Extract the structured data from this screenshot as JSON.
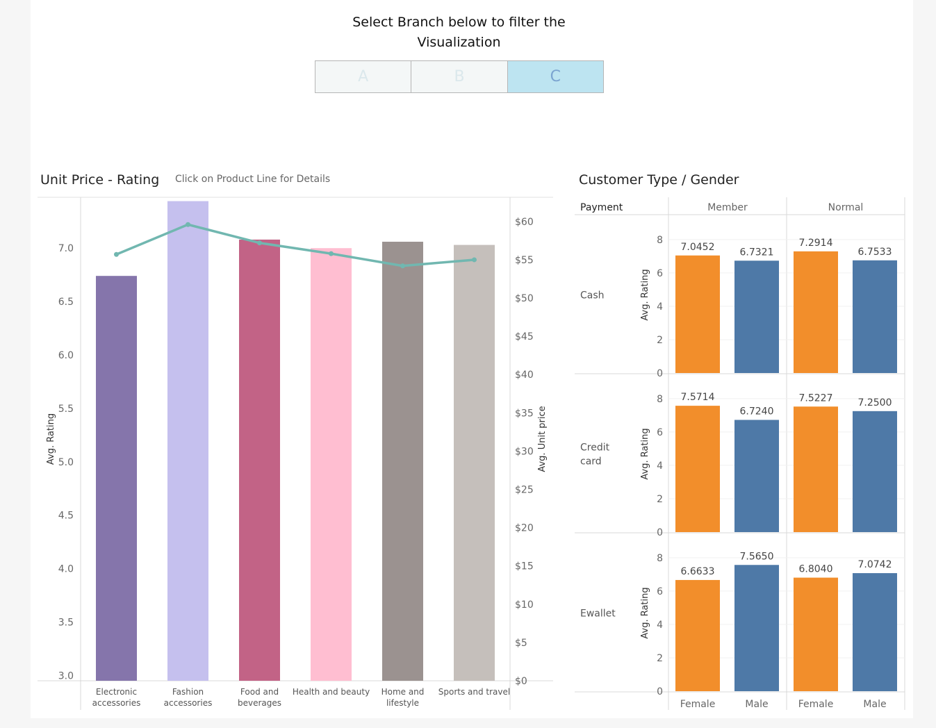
{
  "header": {
    "title": "Select Branch below to filter the\nVisualization",
    "branches": [
      "A",
      "B",
      "C"
    ],
    "selected_branch": "C"
  },
  "left_panel": {
    "title": "Unit Price - Rating",
    "subtitle": "Click on Product Line for Details"
  },
  "right_panel": {
    "title": "Customer Type / Gender"
  },
  "chart_data": [
    {
      "type": "bar",
      "name": "Unit Price - Rating",
      "categories": [
        "Electronic\naccessories",
        "Fashion\naccessories",
        "Food and\nbeverages",
        "Health and beauty",
        "Home and\nlifestyle",
        "Sports and travel"
      ],
      "series": [
        {
          "name": "Avg. Rating",
          "type": "bar",
          "axis": "left",
          "values": [
            6.74,
            7.44,
            7.08,
            7.0,
            7.06,
            7.03
          ],
          "colors": [
            "#8575ab",
            "#c5c0ee",
            "#c26386",
            "#ffbed1",
            "#9b9290",
            "#c5bfbb"
          ]
        },
        {
          "name": "Avg. Unit price",
          "type": "line",
          "axis": "right",
          "color": "#71b7b0",
          "values": [
            55.7,
            59.6,
            57.2,
            55.8,
            54.2,
            55.0
          ]
        }
      ],
      "ylabel": "Avg. Rating",
      "ylim": [
        2.95,
        7.45
      ],
      "yticks": [
        "3.0",
        "3.5",
        "4.0",
        "4.5",
        "5.0",
        "5.5",
        "6.0",
        "6.5",
        "7.0"
      ],
      "y2label": "Avg. Unit price",
      "y2lim": [
        0,
        62.8
      ],
      "y2ticks": [
        "$0",
        "$5",
        "$10",
        "$15",
        "$20",
        "$25",
        "$30",
        "$35",
        "$40",
        "$45",
        "$50",
        "$55",
        "$60"
      ]
    },
    {
      "type": "bar",
      "name": "Customer Type / Gender",
      "row_header": "Payment",
      "rows": [
        "Cash",
        "Credit\ncard",
        "Ewallet"
      ],
      "columns": [
        "Member",
        "Normal"
      ],
      "genders": [
        "Female",
        "Male"
      ],
      "gender_colors": {
        "Female": "#f28e2b",
        "Male": "#4e79a7"
      },
      "values": [
        [
          [
            7.0452,
            6.7321
          ],
          [
            7.2914,
            6.7533
          ]
        ],
        [
          [
            7.5714,
            6.724
          ],
          [
            7.5227,
            7.25
          ]
        ],
        [
          [
            6.6633,
            7.565
          ],
          [
            6.804,
            7.0742
          ]
        ]
      ],
      "value_labels": [
        [
          [
            "7.0452",
            "6.7321"
          ],
          [
            "7.2914",
            "6.7533"
          ]
        ],
        [
          [
            "7.5714",
            "6.7240"
          ],
          [
            "7.5227",
            "7.2500"
          ]
        ],
        [
          [
            "6.6633",
            "7.5650"
          ],
          [
            "6.8040",
            "7.0742"
          ]
        ]
      ],
      "ylabel": "Avg. Rating",
      "ylim": [
        0,
        8.7
      ],
      "yticks": [
        "0",
        "2",
        "4",
        "6",
        "8"
      ]
    }
  ]
}
